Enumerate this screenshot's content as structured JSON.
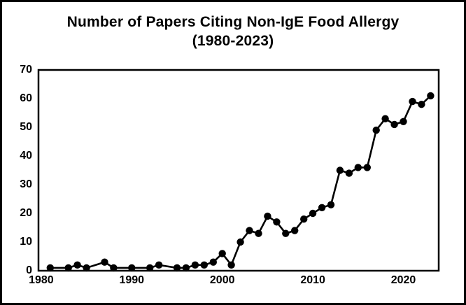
{
  "chart_data": {
    "type": "line",
    "title": "Number of Papers Citing Non-IgE Food Allergy",
    "subtitle": "(1980-2023)",
    "xlabel": "",
    "ylabel": "",
    "xlim": [
      1979.7,
      2023.9
    ],
    "ylim": [
      0,
      70
    ],
    "x_ticks": [
      1980,
      1990,
      2000,
      2010,
      2020
    ],
    "y_ticks": [
      0,
      10,
      20,
      30,
      40,
      50,
      60,
      70
    ],
    "grid": false,
    "legend": false,
    "marker": "filled-circle",
    "line_color": "#000000",
    "marker_color": "#000000",
    "frame_color": "#000000",
    "points": [
      {
        "year": 1981,
        "value": 1
      },
      {
        "year": 1983,
        "value": 1
      },
      {
        "year": 1984,
        "value": 2
      },
      {
        "year": 1985,
        "value": 1
      },
      {
        "year": 1987,
        "value": 3
      },
      {
        "year": 1988,
        "value": 1
      },
      {
        "year": 1990,
        "value": 1
      },
      {
        "year": 1992,
        "value": 1
      },
      {
        "year": 1993,
        "value": 2
      },
      {
        "year": 1995,
        "value": 1
      },
      {
        "year": 1996,
        "value": 1
      },
      {
        "year": 1997,
        "value": 2
      },
      {
        "year": 1998,
        "value": 2
      },
      {
        "year": 1999,
        "value": 3
      },
      {
        "year": 2000,
        "value": 6
      },
      {
        "year": 2001,
        "value": 2
      },
      {
        "year": 2002,
        "value": 10
      },
      {
        "year": 2003,
        "value": 14
      },
      {
        "year": 2004,
        "value": 13
      },
      {
        "year": 2005,
        "value": 19
      },
      {
        "year": 2006,
        "value": 17
      },
      {
        "year": 2007,
        "value": 13
      },
      {
        "year": 2008,
        "value": 14
      },
      {
        "year": 2009,
        "value": 18
      },
      {
        "year": 2010,
        "value": 20
      },
      {
        "year": 2011,
        "value": 22
      },
      {
        "year": 2012,
        "value": 23
      },
      {
        "year": 2013,
        "value": 35
      },
      {
        "year": 2014,
        "value": 34
      },
      {
        "year": 2015,
        "value": 36
      },
      {
        "year": 2016,
        "value": 36
      },
      {
        "year": 2017,
        "value": 49
      },
      {
        "year": 2018,
        "value": 53
      },
      {
        "year": 2019,
        "value": 51
      },
      {
        "year": 2020,
        "value": 52
      },
      {
        "year": 2021,
        "value": 59
      },
      {
        "year": 2022,
        "value": 58
      },
      {
        "year": 2023,
        "value": 61
      }
    ]
  }
}
